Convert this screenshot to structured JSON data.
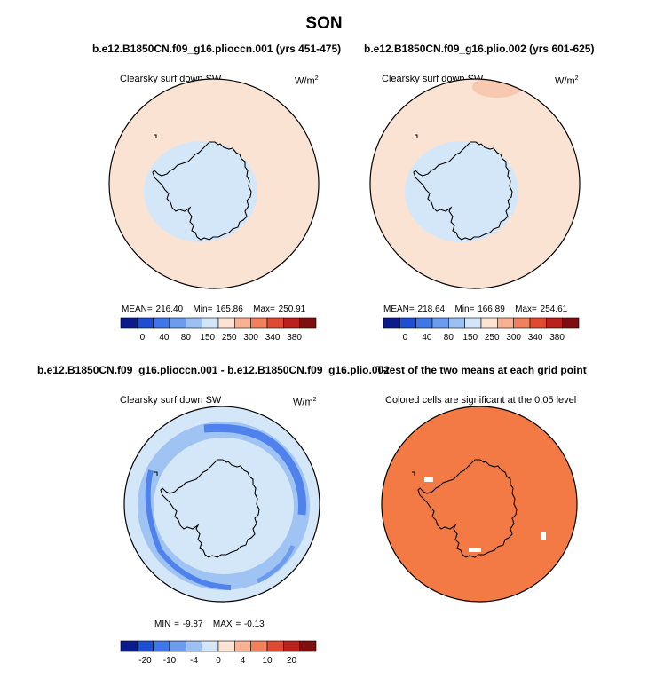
{
  "figure": {
    "title": "SON"
  },
  "chart_data": [
    {
      "type": "heatmap",
      "title": "b.e12.B1850CN.f09_g16.plioccn.001 (yrs 451-475)",
      "left_label": "Clearsky surf down SW",
      "units": "W/m",
      "units_superscript": "2",
      "stats": {
        "mean_label": "MEAN=",
        "mean": "216.40",
        "min_label": "Min=",
        "min": "165.86",
        "max_label": "Max=",
        "max": "250.91"
      },
      "levels": [
        "0",
        "40",
        "80",
        "150",
        "250",
        "300",
        "340",
        "380"
      ],
      "fill_colors": {
        "ocean": "#fbe3d3",
        "antarctic": "#d4e7f9"
      }
    },
    {
      "type": "heatmap",
      "title": "b.e12.B1850CN.f09_g16.plio.002 (yrs 601-625)",
      "left_label": "Clearsky surf down SW",
      "units": "W/m",
      "units_superscript": "2",
      "stats": {
        "mean_label": "MEAN=",
        "mean": "218.64",
        "min_label": "Min=",
        "min": "166.89",
        "max_label": "Max=",
        "max": "254.61"
      },
      "levels": [
        "0",
        "40",
        "80",
        "150",
        "250",
        "300",
        "340",
        "380"
      ],
      "fill_colors": {
        "ocean": "#fbe3d3",
        "antarctic": "#d4e7f9"
      }
    },
    {
      "type": "heatmap",
      "title": "b.e12.B1850CN.f09_g16.plioccn.001 - b.e12.B1850CN.f09_g16.plio.002",
      "left_label": "Clearsky surf down SW",
      "units": "W/m",
      "units_superscript": "2",
      "stats": {
        "min_label": "MIN =",
        "min": "-9.87",
        "max_label": "MAX =",
        "max": "-0.13"
      },
      "levels": [
        "-20",
        "-10",
        "-4",
        "0",
        "4",
        "10",
        "20"
      ],
      "fill_colors": {
        "background": "#d4e7f9",
        "band": "#9fc3f3",
        "strong": "#4f82ec"
      }
    },
    {
      "type": "heatmap",
      "title": "T-test of the two means at each grid point",
      "left_label": "Colored cells are significant at the 0.05 level",
      "fill_colors": {
        "significant": "#f47a45"
      }
    }
  ],
  "colorbars": {
    "full": [
      "#0b1b8c",
      "#1f4fce",
      "#3f77e8",
      "#6c9ced",
      "#9dc0f2",
      "#d3e5f8",
      "#fde3d3",
      "#f8b293",
      "#f1805c",
      "#df4a33",
      "#b8211d",
      "#7e0f10"
    ],
    "diff": [
      "#0b1b8c",
      "#1f4fce",
      "#3f77e8",
      "#6c9ced",
      "#9dc0f2",
      "#d3e5f8",
      "#fde3d3",
      "#f8b293",
      "#f1805c",
      "#df4a33",
      "#b8211d",
      "#7e0f10"
    ]
  }
}
